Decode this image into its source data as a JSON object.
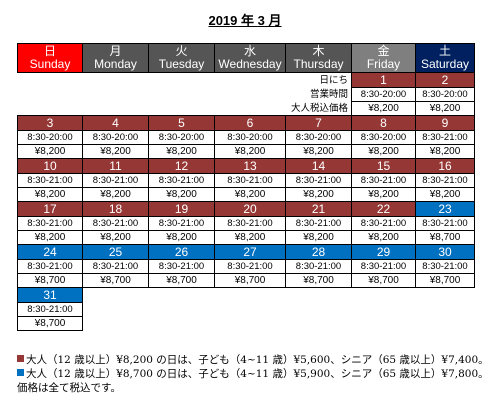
{
  "title": {
    "year": "2019",
    "nen": "年",
    "month": "3",
    "gatsu": "月"
  },
  "colors": {
    "sunday": "#ff0000",
    "weekday": "#555555",
    "friday": "#7f7f7f",
    "saturday": "#002060",
    "standard": "#953735",
    "premium": "#0070c0"
  },
  "weekdays": [
    {
      "jp": "日",
      "en": "Sunday"
    },
    {
      "jp": "月",
      "en": "Monday"
    },
    {
      "jp": "火",
      "en": "Tuesday"
    },
    {
      "jp": "水",
      "en": "Wednesday"
    },
    {
      "jp": "木",
      "en": "Thursday"
    },
    {
      "jp": "金",
      "en": "Friday"
    },
    {
      "jp": "土",
      "en": "Saturday"
    }
  ],
  "legend_labels": {
    "day": "日にち",
    "hours": "営業時間",
    "price": "大人税込価格"
  },
  "weeks": [
    [
      null,
      null,
      null,
      null,
      null,
      {
        "day": "1",
        "hours": "8:30-20:00",
        "price": "¥8,200",
        "type": "standard"
      },
      {
        "day": "2",
        "hours": "8:30-20:00",
        "price": "¥8,200",
        "type": "standard"
      }
    ],
    [
      {
        "day": "3",
        "hours": "8:30-20:00",
        "price": "¥8,200",
        "type": "standard"
      },
      {
        "day": "4",
        "hours": "8:30-20:00",
        "price": "¥8,200",
        "type": "standard"
      },
      {
        "day": "5",
        "hours": "8:30-20:00",
        "price": "¥8,200",
        "type": "standard"
      },
      {
        "day": "6",
        "hours": "8:30-20:00",
        "price": "¥8,200",
        "type": "standard"
      },
      {
        "day": "7",
        "hours": "8:30-20:00",
        "price": "¥8,200",
        "type": "standard"
      },
      {
        "day": "8",
        "hours": "8:30-20:00",
        "price": "¥8,200",
        "type": "standard"
      },
      {
        "day": "9",
        "hours": "8:30-21:00",
        "price": "¥8,200",
        "type": "standard"
      }
    ],
    [
      {
        "day": "10",
        "hours": "8:30-21:00",
        "price": "¥8,200",
        "type": "standard"
      },
      {
        "day": "11",
        "hours": "8:30-21:00",
        "price": "¥8,200",
        "type": "standard"
      },
      {
        "day": "12",
        "hours": "8:30-21:00",
        "price": "¥8,200",
        "type": "standard"
      },
      {
        "day": "13",
        "hours": "8:30-21:00",
        "price": "¥8,200",
        "type": "standard"
      },
      {
        "day": "14",
        "hours": "8:30-21:00",
        "price": "¥8,200",
        "type": "standard"
      },
      {
        "day": "15",
        "hours": "8:30-21:00",
        "price": "¥8,200",
        "type": "standard"
      },
      {
        "day": "16",
        "hours": "8:30-21:00",
        "price": "¥8,200",
        "type": "standard"
      }
    ],
    [
      {
        "day": "17",
        "hours": "8:30-21:00",
        "price": "¥8,200",
        "type": "standard"
      },
      {
        "day": "18",
        "hours": "8:30-21:00",
        "price": "¥8,200",
        "type": "standard"
      },
      {
        "day": "19",
        "hours": "8:30-21:00",
        "price": "¥8,200",
        "type": "standard"
      },
      {
        "day": "20",
        "hours": "8:30-21:00",
        "price": "¥8,200",
        "type": "standard"
      },
      {
        "day": "21",
        "hours": "8:30-21:00",
        "price": "¥8,200",
        "type": "standard"
      },
      {
        "day": "22",
        "hours": "8:30-21:00",
        "price": "¥8,200",
        "type": "standard"
      },
      {
        "day": "23",
        "hours": "8:30-21:00",
        "price": "¥8,700",
        "type": "premium"
      }
    ],
    [
      {
        "day": "24",
        "hours": "8:30-21:00",
        "price": "¥8,700",
        "type": "premium"
      },
      {
        "day": "25",
        "hours": "8:30-21:00",
        "price": "¥8,700",
        "type": "premium"
      },
      {
        "day": "26",
        "hours": "8:30-21:00",
        "price": "¥8,700",
        "type": "premium"
      },
      {
        "day": "27",
        "hours": "8:30-21:00",
        "price": "¥8,700",
        "type": "premium"
      },
      {
        "day": "28",
        "hours": "8:30-21:00",
        "price": "¥8,700",
        "type": "premium"
      },
      {
        "day": "29",
        "hours": "8:30-21:00",
        "price": "¥8,700",
        "type": "premium"
      },
      {
        "day": "30",
        "hours": "8:30-21:00",
        "price": "¥8,700",
        "type": "premium"
      }
    ],
    [
      {
        "day": "31",
        "hours": "8:30-21:00",
        "price": "¥8,700",
        "type": "premium"
      },
      null,
      null,
      null,
      null,
      null,
      null
    ]
  ],
  "notes": [
    {
      "swatch": "standard",
      "text": "大人（12 歳以上）¥8,200 の日は、子ども（4~11 歳）¥5,600、シニア（65 歳以上）¥7,400。"
    },
    {
      "swatch": "premium",
      "text": "大人（12 歳以上）¥8,700 の日は、子ども（4~11 歳）¥5,900、シニア（65 歳以上）¥7,800。"
    },
    {
      "swatch": null,
      "text": "価格は全て税込です。"
    }
  ]
}
